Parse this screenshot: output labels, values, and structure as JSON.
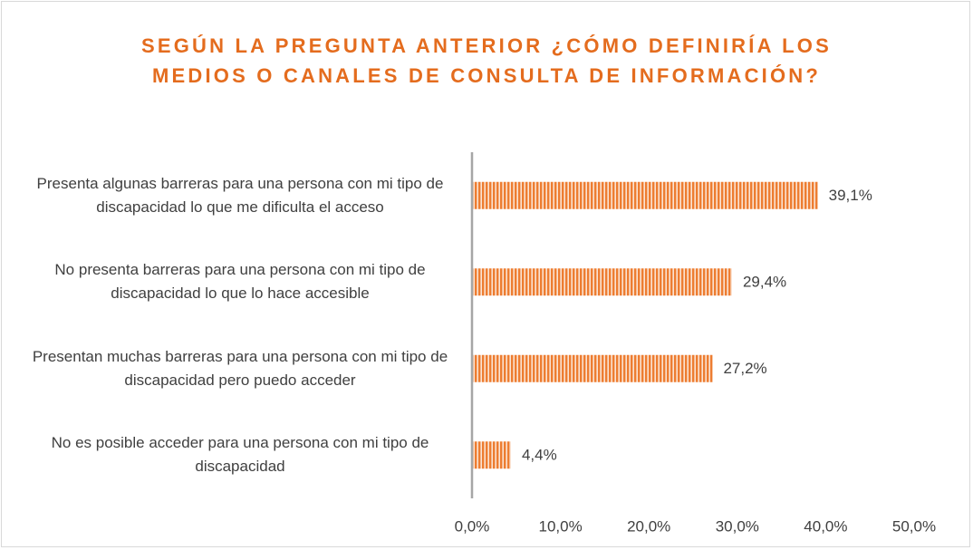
{
  "chart_data": {
    "type": "bar",
    "orientation": "horizontal",
    "title": "SEGÚN LA PREGUNTA ANTERIOR ¿CÓMO DEFINIRÍA LOS MEDIOS O CANALES DE CONSULTA DE INFORMACIÓN?",
    "categories": [
      "Presenta algunas barreras para una persona con mi tipo de discapacidad lo que me dificulta el acceso",
      "No presenta barreras para una persona con mi tipo de discapacidad lo que lo hace accesible",
      "Presentan muchas barreras para una persona con mi tipo de discapacidad pero puedo acceder",
      "No es posible acceder para una persona con mi tipo de discapacidad"
    ],
    "values": [
      39.1,
      29.4,
      27.2,
      4.4
    ],
    "value_labels": [
      "39,1%",
      "29,4%",
      "27,2%",
      "4,4%"
    ],
    "color": "#ed7d31",
    "xlim": [
      0,
      50
    ],
    "xticks": [
      {
        "value": 0,
        "label": "0,0%"
      },
      {
        "value": 10,
        "label": "10,0%"
      },
      {
        "value": 20,
        "label": "20,0%"
      },
      {
        "value": 30,
        "label": "30,0%"
      },
      {
        "value": 40,
        "label": "40,0%"
      },
      {
        "value": 50,
        "label": "50,0%"
      }
    ],
    "grid": false
  }
}
